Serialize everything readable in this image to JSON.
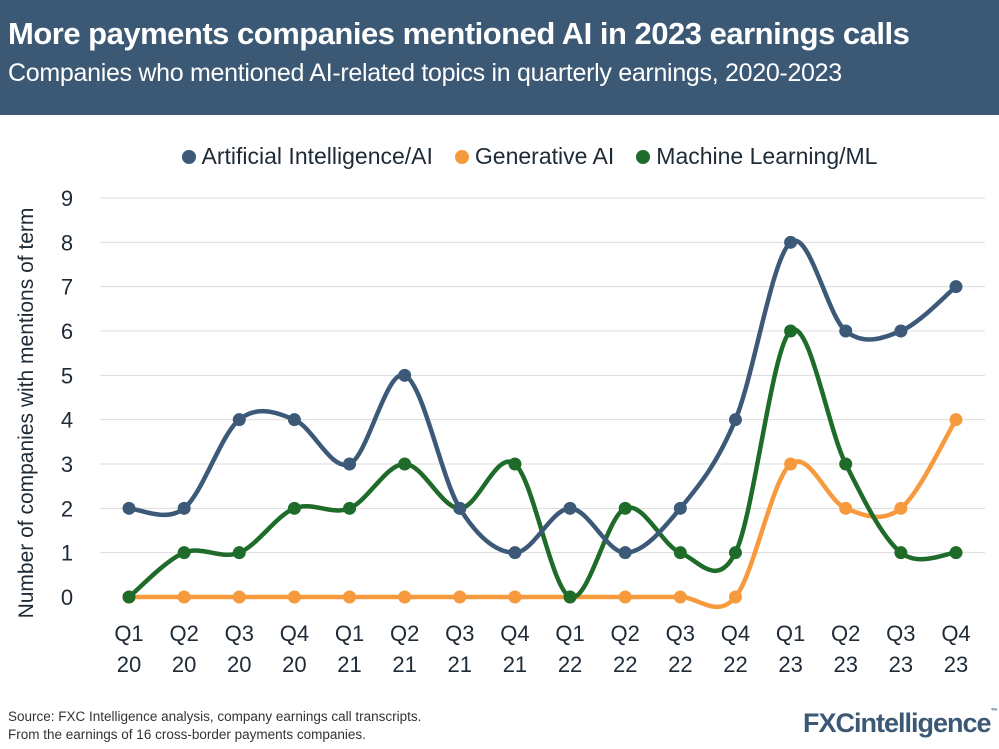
{
  "header": {
    "title": "More payments companies mentioned AI in 2023 earnings calls",
    "subtitle": "Companies who mentioned AI-related topics in quarterly earnings, 2020-2023"
  },
  "footer": {
    "source": "Source: FXC Intelligence analysis, company earnings call transcripts.",
    "note": "From the earnings of 16 cross-border payments companies.",
    "logo": "FXCintelligence"
  },
  "chart_data": {
    "type": "line",
    "title": "",
    "ylabel": "Number of companies with mentions of term",
    "xlabel": "",
    "ylim": [
      0,
      9
    ],
    "yticks": [
      "0",
      "1",
      "2",
      "3",
      "4",
      "5",
      "6",
      "7",
      "8",
      "9"
    ],
    "grid": true,
    "legend": "top",
    "smooth": true,
    "categories": [
      [
        "Q1",
        "20"
      ],
      [
        "Q2",
        "20"
      ],
      [
        "Q3",
        "20"
      ],
      [
        "Q4",
        "20"
      ],
      [
        "Q1",
        "21"
      ],
      [
        "Q2",
        "21"
      ],
      [
        "Q3",
        "21"
      ],
      [
        "Q4",
        "21"
      ],
      [
        "Q1",
        "22"
      ],
      [
        "Q2",
        "22"
      ],
      [
        "Q3",
        "22"
      ],
      [
        "Q4",
        "22"
      ],
      [
        "Q1",
        "23"
      ],
      [
        "Q2",
        "23"
      ],
      [
        "Q3",
        "23"
      ],
      [
        "Q4",
        "23"
      ]
    ],
    "series": [
      {
        "name": "Artificial Intelligence/AI",
        "color": "#3c5a78",
        "values": [
          2,
          2,
          4,
          4,
          3,
          5,
          2,
          1,
          2,
          1,
          2,
          4,
          8,
          6,
          6,
          7
        ]
      },
      {
        "name": "Generative AI",
        "color": "#f79a3e",
        "values": [
          0,
          0,
          0,
          0,
          0,
          0,
          0,
          0,
          0,
          0,
          0,
          0,
          3,
          2,
          2,
          4
        ]
      },
      {
        "name": "Machine Learning/ML",
        "color": "#1e6b2a",
        "values": [
          0,
          1,
          1,
          2,
          2,
          3,
          2,
          3,
          0,
          2,
          1,
          1,
          6,
          3,
          1,
          1
        ]
      }
    ]
  }
}
